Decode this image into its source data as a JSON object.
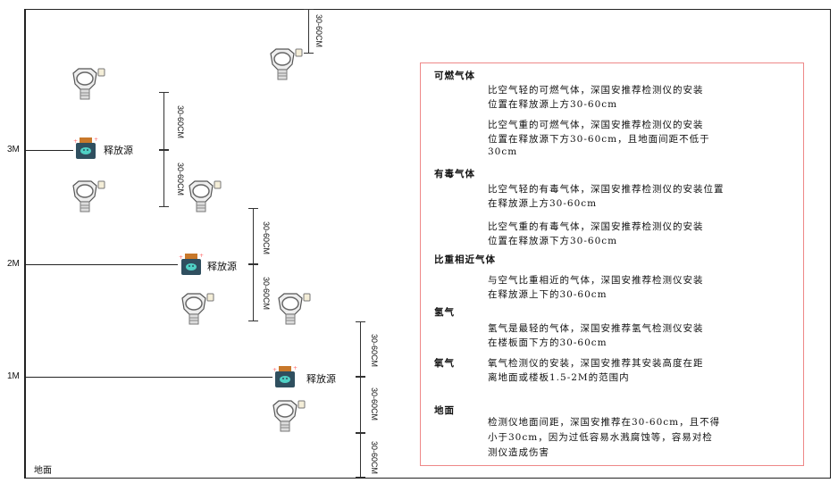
{
  "levels": {
    "l3": "3M",
    "l2": "2M",
    "l1": "1M",
    "ground": "地面"
  },
  "dimension_label": "30-60CM",
  "source_label": "释放源",
  "colors": {
    "frame": "#222222",
    "box_border": "#ee8888",
    "source_body": "#2f4f5f",
    "source_cap": "#c8782a",
    "source_face": "#4fd1c5"
  },
  "info": {
    "combustible": {
      "title": "可燃气体",
      "lines": [
        "比空气轻的可燃气体，深国安推荐检测仪的安装",
        "位置在释放源上方30-60cm",
        "比空气重的可燃气体，深国安推荐检测仪的安装",
        "位置在释放源下方30-60cm，且地面间距不低于",
        "30cm"
      ]
    },
    "toxic": {
      "title": "有毒气体",
      "lines": [
        "比空气轻的有毒气体，深国安推荐检测仪的安装位置",
        "在释放源上方30-60cm",
        "比空气重的有毒气体，深国安推荐检测仪的安装",
        "位置在释放源下方30-60cm"
      ]
    },
    "similar": {
      "title": "比重相近气体",
      "lines": [
        "与空气比重相近的气体，深国安推荐检测仪安装",
        "在释放源上下的30-60cm"
      ]
    },
    "hydrogen": {
      "title": "氢气",
      "lines": [
        "氢气是最轻的气体，深国安推荐氢气检测仪安装",
        "在楼板面下方的30-60cm"
      ]
    },
    "oxygen": {
      "title": "氧气",
      "lines": [
        "氧气检测仪的安装，深国安推荐其安装高度在距",
        "离地面或楼板1.5-2M的范围内"
      ]
    },
    "ground": {
      "title": "地面",
      "lines": [
        "检测仪地面间距，深国安推荐在30-60cm，且不得",
        "小于30cm，因为过低容易水溅腐蚀等，容易对检",
        "测仪造成伤害"
      ]
    }
  }
}
